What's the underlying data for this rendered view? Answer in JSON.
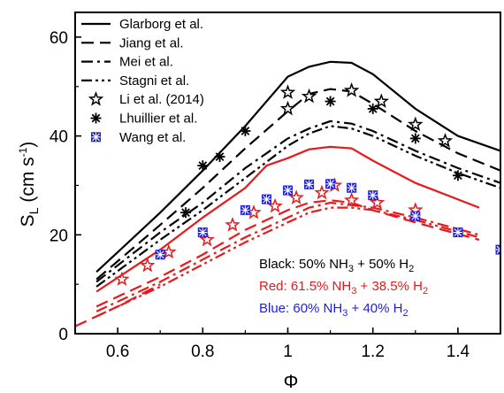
{
  "chart_data": {
    "type": "line",
    "xlabel": "Φ",
    "ylabel": "S",
    "ylabel_sub": "L",
    "ylabel_units_a": " (cm s",
    "ylabel_units_sup": "-1",
    "ylabel_units_b": ")",
    "xlim": [
      0.5,
      1.5
    ],
    "ylim": [
      0,
      65
    ],
    "x_ticks": [
      0.6,
      0.8,
      1.0,
      1.2,
      1.4
    ],
    "x_tick_labels": [
      "0.6",
      "0.8",
      "1",
      "1.2",
      "1.4"
    ],
    "y_ticks": [
      0,
      20,
      40,
      60
    ],
    "y_tick_labels": [
      "0",
      "20",
      "40",
      "60"
    ],
    "grid": false,
    "legend_position": "top-left",
    "legend": [
      {
        "label": "Glarborg et al.",
        "style": "solid"
      },
      {
        "label": "Jiang et al.",
        "style": "dash"
      },
      {
        "label": "Mei et al.",
        "style": "dashdot"
      },
      {
        "label": "Stagni et al.",
        "style": "dashdotdot"
      },
      {
        "label": "Li et al. (2014)",
        "style": "star-marker"
      },
      {
        "label": "Lhuillier et al.",
        "style": "asterisk-marker"
      },
      {
        "label": "Wang et al.",
        "style": "square-marker"
      }
    ],
    "annotations": [
      {
        "parts": [
          {
            "t": "Black: 50% NH"
          },
          {
            "t": "3",
            "sub": true
          },
          {
            "t": " + 50% H"
          },
          {
            "t": "2",
            "sub": true
          }
        ],
        "color": "#000000"
      },
      {
        "parts": [
          {
            "t": "Red: 61.5% NH"
          },
          {
            "t": "3",
            "sub": true
          },
          {
            "t": " + 38.5% H"
          },
          {
            "t": "2",
            "sub": true
          }
        ],
        "color": "#e8191b"
      },
      {
        "parts": [
          {
            "t": "Blue: 60% NH"
          },
          {
            "t": "3",
            "sub": true
          },
          {
            "t": " + 40% H"
          },
          {
            "t": "2",
            "sub": true
          }
        ],
        "color": "#1f1fd6"
      }
    ],
    "series": [
      {
        "name": "Glarborg et al.",
        "mixture": "black",
        "color": "#000000",
        "style": "solid",
        "x": [
          0.55,
          0.7,
          0.8,
          0.9,
          1.0,
          1.05,
          1.1,
          1.15,
          1.2,
          1.3,
          1.4,
          1.5
        ],
        "y": [
          12.5,
          24.5,
          33,
          42,
          52,
          54,
          55,
          54.8,
          52.5,
          45.5,
          40,
          37
        ]
      },
      {
        "name": "Jiang et al.",
        "mixture": "black",
        "color": "#000000",
        "style": "dash",
        "x": [
          0.55,
          0.7,
          0.8,
          0.9,
          1.0,
          1.05,
          1.1,
          1.15,
          1.2,
          1.3,
          1.4,
          1.5
        ],
        "y": [
          11,
          22,
          29.5,
          37.5,
          45,
          48.5,
          49.5,
          49,
          46.5,
          41,
          36.5,
          33
        ]
      },
      {
        "name": "Mei et al.",
        "mixture": "black",
        "color": "#000000",
        "style": "dashdot",
        "x": [
          0.55,
          0.7,
          0.8,
          0.9,
          1.0,
          1.05,
          1.1,
          1.15,
          1.2,
          1.3,
          1.4,
          1.5
        ],
        "y": [
          10.5,
          20.5,
          26.5,
          33.5,
          39.5,
          41.5,
          43,
          42.5,
          41,
          37,
          33.5,
          30.5
        ]
      },
      {
        "name": "Stagni et al.",
        "mixture": "black",
        "color": "#000000",
        "style": "dashdotdot",
        "x": [
          0.55,
          0.7,
          0.8,
          0.9,
          1.0,
          1.05,
          1.1,
          1.15,
          1.2,
          1.3,
          1.4,
          1.5
        ],
        "y": [
          9.5,
          19,
          25,
          31.5,
          38,
          40.5,
          42,
          41.5,
          40,
          36,
          32.5,
          29.5
        ]
      },
      {
        "name": "Glarborg et al.",
        "mixture": "red",
        "color": "#e8191b",
        "style": "solid",
        "x": [
          0.55,
          0.7,
          0.8,
          0.9,
          0.95,
          1.0,
          1.05,
          1.1,
          1.15,
          1.2,
          1.3,
          1.45
        ],
        "y": [
          8.5,
          17,
          23.5,
          29.5,
          34,
          35.5,
          37.3,
          37.8,
          37.5,
          35,
          30.5,
          25.5
        ]
      },
      {
        "name": "Jiang et al.",
        "mixture": "red",
        "color": "#e8191b",
        "style": "dash",
        "x": [
          0.55,
          0.7,
          0.8,
          0.9,
          1.0,
          1.05,
          1.1,
          1.15,
          1.2,
          1.3,
          1.45
        ],
        "y": [
          5.5,
          11.5,
          16,
          21,
          25,
          26.5,
          27,
          26.5,
          25,
          22.5,
          19
        ]
      },
      {
        "name": "Mei et al.",
        "mixture": "red",
        "color": "#e8191b",
        "style": "dashdot",
        "x": [
          0.55,
          0.7,
          0.8,
          0.9,
          1.0,
          1.05,
          1.1,
          1.15,
          1.2,
          1.3,
          1.45
        ],
        "y": [
          4.5,
          10.5,
          15,
          19.5,
          23.5,
          25.5,
          26.5,
          26,
          25.5,
          23.5,
          20
        ]
      },
      {
        "name": "Stagni et al.",
        "mixture": "red",
        "color": "#e8191b",
        "style": "dashdotdot",
        "x": [
          0.55,
          0.7,
          0.8,
          0.9,
          1.0,
          1.05,
          1.1,
          1.15,
          1.2,
          1.3,
          1.45
        ],
        "y": [
          3.5,
          9.5,
          14,
          18.5,
          22.5,
          24.5,
          25.5,
          25.5,
          25,
          23,
          19.5
        ]
      },
      {
        "name": "Glarborg et al.",
        "mixture": "extra",
        "color": "#e8191b",
        "style": "dash",
        "x": [
          0.5,
          0.6,
          0.7
        ],
        "y": [
          1.5,
          5.5,
          10
        ]
      }
    ],
    "markers": [
      {
        "name": "Li et al. (2014)",
        "mixture": "black",
        "shape": "star",
        "color": "#000000",
        "x": [
          1.0,
          1.0,
          1.05,
          1.15,
          1.22,
          1.3,
          1.37
        ],
        "y": [
          48.8,
          45.5,
          48,
          49.2,
          47,
          42.3,
          39
        ]
      },
      {
        "name": "Lhuillier et al.",
        "mixture": "black",
        "shape": "asterisk",
        "color": "#000000",
        "x": [
          0.76,
          0.8,
          0.84,
          0.9,
          1.1,
          1.2,
          1.3,
          1.4
        ],
        "y": [
          24.5,
          34,
          35.8,
          41,
          47,
          45.5,
          39.5,
          32
        ]
      },
      {
        "name": "Li et al. (2014)",
        "mixture": "red",
        "shape": "star",
        "color": "#e8191b",
        "x": [
          0.61,
          0.67,
          0.72,
          0.81,
          0.87,
          0.92,
          0.97,
          1.02,
          1.08,
          1.11,
          1.15,
          1.21,
          1.3
        ],
        "y": [
          11,
          13.8,
          16.5,
          19,
          22,
          24.5,
          25.8,
          27.5,
          28.5,
          30,
          27,
          26.5,
          25
        ]
      },
      {
        "name": "Wang et al.",
        "mixture": "blue",
        "shape": "square",
        "color": "#1f1fd6",
        "x": [
          0.7,
          0.8,
          0.9,
          0.95,
          1.0,
          1.05,
          1.1,
          1.15,
          1.2,
          1.3,
          1.4,
          1.5
        ],
        "y": [
          16,
          20.5,
          25,
          27.2,
          29,
          30.2,
          30.3,
          29.5,
          28,
          23.8,
          20.5,
          17
        ]
      }
    ]
  }
}
